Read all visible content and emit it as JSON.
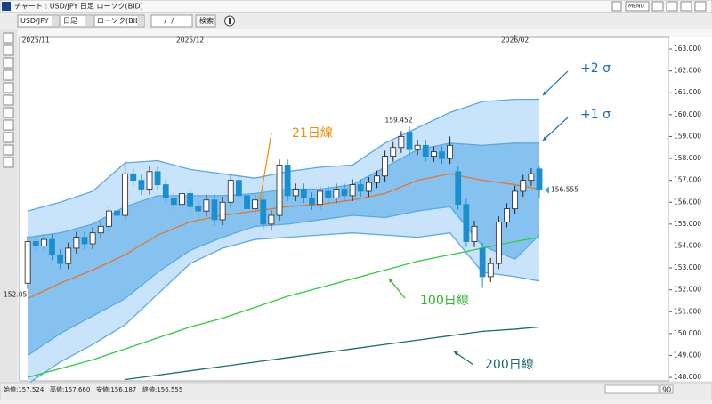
{
  "window": {
    "title": "チャート : USD/JPY 日足 ローソク(BID)",
    "menu": "MENU"
  },
  "toolbar": {
    "symbol": "USD/JPY",
    "period": "日足",
    "chart_kind": "ローソク(BID)",
    "date": " /  / ",
    "search": "検索"
  },
  "status": {
    "items": [
      "始値:157.524",
      "高値:157.660",
      "安値:156.187",
      "終値:156.555"
    ],
    "zoom": "90"
  },
  "chart_data": {
    "type": "candlestick",
    "xlim": [
      -1,
      79
    ],
    "xticks": [
      {
        "value": 1,
        "label": "2025/11"
      },
      {
        "value": 20,
        "label": "2025/12"
      },
      {
        "value": 60,
        "label": "2026/02"
      }
    ],
    "ylim": [
      147.84,
      163.53
    ],
    "yticks": [
      {
        "value": 148,
        "label": "148.000"
      },
      {
        "value": 149,
        "label": "149.000"
      },
      {
        "value": 150,
        "label": "150.000"
      },
      {
        "value": 151,
        "label": "151.000"
      },
      {
        "value": 152,
        "label": "152.000"
      },
      {
        "value": 153,
        "label": "153.000"
      },
      {
        "value": 154,
        "label": "154.000"
      },
      {
        "value": 155,
        "label": "155.000"
      },
      {
        "value": 156,
        "label": "156.000"
      },
      {
        "value": 157,
        "label": "157.000"
      },
      {
        "value": 158,
        "label": "158.000"
      },
      {
        "value": 159,
        "label": "159.000"
      },
      {
        "value": 160,
        "label": "160.000"
      },
      {
        "value": 161,
        "label": "161.000"
      },
      {
        "value": 162,
        "label": "162.000"
      },
      {
        "value": 163,
        "label": "163.000"
      }
    ],
    "grid": false,
    "up_color": "#ffffff",
    "down_color": "#1a8fd0",
    "candles": {
      "open": [
        152.3,
        154.2,
        154.0,
        154.3,
        153.6,
        153.2,
        153.9,
        154.4,
        154.1,
        154.6,
        154.9,
        155.6,
        155.4,
        157.3,
        157.0,
        156.6,
        157.4,
        156.8,
        156.2,
        155.9,
        156.4,
        155.8,
        155.6,
        156.1,
        155.2,
        156.0,
        157.0,
        156.3,
        155.7,
        156.1,
        155.0,
        155.4,
        157.7,
        156.3,
        156.6,
        156.2,
        155.9,
        156.5,
        156.2,
        156.6,
        156.3,
        156.8,
        156.5,
        156.9,
        157.2,
        158.1,
        158.5,
        159.2,
        158.4,
        158.6,
        158.1,
        158.3,
        158.0,
        157.4,
        155.9,
        154.2,
        153.9,
        152.6,
        153.2,
        155.1,
        155.7,
        156.5,
        157.0,
        157.524
      ],
      "high": [
        154.45,
        154.45,
        154.55,
        154.55,
        153.85,
        154.15,
        154.65,
        154.65,
        154.85,
        155.15,
        155.85,
        155.85,
        157.9,
        157.55,
        157.25,
        157.65,
        157.65,
        157.05,
        156.45,
        156.65,
        156.65,
        156.05,
        156.35,
        156.35,
        156.25,
        157.25,
        157.25,
        156.55,
        156.35,
        156.35,
        155.65,
        157.95,
        157.95,
        156.85,
        156.85,
        156.45,
        156.75,
        156.75,
        156.85,
        156.85,
        157.05,
        157.05,
        157.15,
        157.45,
        158.35,
        158.75,
        159.25,
        159.452,
        158.85,
        158.85,
        158.55,
        158.55,
        159.0,
        157.65,
        156.15,
        155.15,
        154.15,
        153.45,
        155.35,
        155.95,
        156.75,
        157.25,
        157.55,
        157.66
      ],
      "low": [
        152.05,
        153.75,
        153.75,
        153.35,
        152.95,
        152.95,
        153.65,
        153.85,
        153.85,
        154.35,
        154.65,
        155.15,
        155.15,
        156.75,
        156.35,
        156.35,
        156.55,
        155.95,
        155.65,
        155.65,
        155.55,
        155.35,
        155.35,
        154.95,
        154.95,
        155.75,
        156.05,
        155.45,
        155.45,
        154.75,
        154.75,
        155.15,
        156.05,
        156.05,
        155.95,
        155.65,
        155.65,
        155.95,
        155.95,
        156.05,
        156.05,
        156.25,
        156.25,
        156.65,
        156.95,
        157.85,
        158.25,
        158.15,
        158.15,
        157.85,
        157.85,
        157.75,
        157.75,
        155.65,
        153.95,
        153.95,
        152.084,
        152.35,
        152.95,
        154.85,
        155.45,
        156.25,
        156.75,
        156.187
      ],
      "close": [
        154.2,
        154.0,
        154.3,
        153.6,
        153.2,
        153.9,
        154.4,
        154.1,
        154.6,
        154.9,
        155.6,
        155.4,
        157.3,
        157.0,
        156.6,
        157.4,
        156.8,
        156.2,
        155.9,
        156.4,
        155.8,
        155.6,
        156.1,
        155.2,
        156.0,
        157.0,
        156.3,
        155.7,
        156.1,
        155.0,
        155.4,
        157.7,
        156.3,
        156.6,
        156.2,
        155.9,
        156.5,
        156.2,
        156.6,
        156.3,
        156.8,
        156.5,
        156.9,
        157.2,
        158.1,
        158.5,
        159.0,
        158.4,
        158.6,
        158.1,
        158.3,
        158.0,
        158.6,
        155.9,
        154.2,
        154.9,
        152.6,
        153.2,
        155.1,
        155.7,
        156.5,
        157.0,
        157.3,
        156.555
      ]
    },
    "line_x": [
      0,
      4,
      8,
      12,
      16,
      20,
      24,
      28,
      32,
      36,
      40,
      44,
      48,
      52,
      56,
      60,
      63
    ],
    "bands": [
      {
        "name": "+2 σ",
        "color": "#c9e4fa",
        "label_color": "#1a6fb0",
        "upper": [
          155.6,
          156.0,
          156.5,
          157.8,
          157.9,
          157.5,
          157.3,
          157.1,
          157.4,
          157.6,
          157.7,
          158.7,
          159.4,
          160.1,
          160.6,
          160.7,
          160.7
        ],
        "lower": [
          147.7,
          148.7,
          149.5,
          150.4,
          151.8,
          153.2,
          153.9,
          154.3,
          154.4,
          154.5,
          154.6,
          154.5,
          154.4,
          154.6,
          152.8,
          152.6,
          152.4
        ]
      },
      {
        "name": "+1 σ",
        "color": "#86c2ef",
        "label_color": "#1a6fb0",
        "upper": [
          154.4,
          154.6,
          155.0,
          155.8,
          156.3,
          156.3,
          156.3,
          156.4,
          156.6,
          156.6,
          156.8,
          157.6,
          158.4,
          158.7,
          158.6,
          158.7,
          158.7
        ],
        "lower": [
          149.0,
          150.0,
          150.8,
          151.6,
          152.8,
          153.8,
          154.4,
          154.9,
          155.0,
          155.2,
          155.4,
          155.3,
          155.6,
          155.8,
          154.0,
          153.4,
          154.5
        ]
      }
    ],
    "series": [
      {
        "name": "21日線",
        "color": "#e8742a",
        "label_color": "#f08c00",
        "values": [
          151.6,
          152.3,
          152.9,
          153.6,
          154.5,
          155.1,
          155.4,
          155.6,
          155.8,
          155.9,
          156.1,
          156.4,
          157.0,
          157.3,
          157.0,
          156.8,
          156.6
        ]
      },
      {
        "name": "100日線",
        "color": "#2ecc40",
        "label_color": "#2db52d",
        "values": [
          148.0,
          148.4,
          148.8,
          149.3,
          149.8,
          150.3,
          150.7,
          151.2,
          151.7,
          152.1,
          152.5,
          152.9,
          153.3,
          153.6,
          153.9,
          154.2,
          154.4
        ]
      },
      {
        "name": "200日線",
        "color": "#1c6b6b",
        "label_color": "#1a6b6b",
        "values": [
          null,
          null,
          null,
          147.9,
          148.1,
          148.3,
          148.5,
          148.7,
          148.9,
          149.1,
          149.3,
          149.5,
          149.7,
          149.9,
          150.1,
          150.2,
          150.3
        ]
      }
    ]
  }
}
